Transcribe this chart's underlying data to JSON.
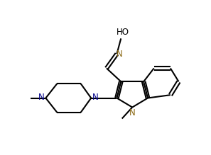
{
  "bond_color": "#000000",
  "n_color": "#00008B",
  "n_indole_color": "#8B6914",
  "bg_color": "#ffffff",
  "line_width": 1.5,
  "font_size": 8.5,
  "fig_width": 2.97,
  "fig_height": 2.19,
  "xlim": [
    0,
    10
  ],
  "ylim": [
    0,
    7.5
  ]
}
